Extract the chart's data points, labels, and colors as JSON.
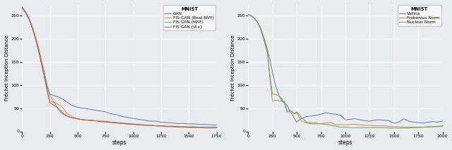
{
  "ylabel": "Fréchet Inception Distance",
  "xlabel": "steps",
  "bg_color": "#e8ecf0",
  "axes_bg": "#e8ecf0",
  "grid_color": "#ffffff",
  "plot1": {
    "legend_title": "MNIST",
    "legend": [
      "GAN",
      "FIS-GAN (Real-NVP)",
      "FIS GAN (MAF)",
      "FIS GAN (IA+)"
    ],
    "colors": [
      "#5a78b8",
      "#e0813a",
      "#5aaa5a",
      "#d44e4e"
    ],
    "xlim": [
      0,
      1750
    ],
    "ylim": [
      0,
      275
    ],
    "yticks": [
      0,
      50,
      100,
      150,
      200,
      250
    ],
    "xticks": [
      0,
      250,
      500,
      750,
      1000,
      1250,
      1500,
      1750
    ],
    "steps": [
      0,
      25,
      50,
      75,
      100,
      125,
      150,
      175,
      200,
      225,
      250,
      275,
      300,
      325,
      350,
      375,
      400,
      425,
      450,
      475,
      500,
      550,
      600,
      650,
      700,
      750,
      800,
      850,
      900,
      950,
      1000,
      1050,
      1100,
      1150,
      1200,
      1250,
      1300,
      1350,
      1400,
      1450,
      1500,
      1550,
      1600,
      1650,
      1700,
      1750
    ],
    "GAN": [
      265,
      258,
      248,
      235,
      218,
      200,
      178,
      152,
      128,
      100,
      80,
      78,
      76,
      74,
      72,
      68,
      64,
      60,
      56,
      54,
      52,
      50,
      48,
      46,
      44,
      42,
      38,
      36,
      32,
      30,
      28,
      26,
      24,
      22,
      22,
      20,
      19,
      18,
      17,
      17,
      16,
      16,
      15,
      15,
      14,
      14
    ],
    "RealNVP": [
      268,
      260,
      250,
      237,
      220,
      200,
      178,
      150,
      124,
      90,
      65,
      63,
      62,
      58,
      55,
      48,
      40,
      36,
      32,
      29,
      27,
      25,
      24,
      23,
      22,
      22,
      20,
      18,
      17,
      16,
      15,
      14,
      14,
      13,
      12,
      12,
      11,
      11,
      10,
      10,
      10,
      10,
      9,
      9,
      9,
      9
    ],
    "MAF": [
      266,
      258,
      248,
      234,
      216,
      196,
      172,
      145,
      118,
      96,
      78,
      68,
      58,
      48,
      40,
      36,
      33,
      31,
      29,
      28,
      27,
      25,
      24,
      23,
      22,
      21,
      20,
      19,
      18,
      17,
      16,
      15,
      14,
      13,
      12,
      11,
      10,
      10,
      9,
      9,
      8,
      8,
      8,
      7,
      7,
      7
    ],
    "IAplus": [
      268,
      260,
      250,
      236,
      218,
      196,
      172,
      145,
      118,
      86,
      62,
      58,
      54,
      50,
      44,
      38,
      34,
      31,
      29,
      28,
      27,
      25,
      24,
      23,
      21,
      20,
      19,
      18,
      17,
      16,
      15,
      14,
      13,
      13,
      12,
      12,
      11,
      11,
      10,
      10,
      9,
      9,
      9,
      9,
      9,
      9
    ]
  },
  "plot2": {
    "legend_title": "MNIST",
    "legend": [
      "Vallina",
      "Frobenius Norm",
      "Nuclear Norm"
    ],
    "colors": [
      "#5a78b8",
      "#e0813a",
      "#5aaa5a"
    ],
    "xlim": [
      0,
      2000
    ],
    "ylim": [
      0,
      275
    ],
    "yticks": [
      0,
      50,
      100,
      150,
      200,
      250
    ],
    "xticks": [
      0,
      250,
      500,
      750,
      1000,
      1250,
      1500,
      1750,
      2000
    ],
    "steps": [
      0,
      25,
      50,
      75,
      100,
      125,
      150,
      175,
      200,
      225,
      250,
      275,
      300,
      325,
      350,
      375,
      400,
      425,
      450,
      475,
      500,
      550,
      600,
      650,
      700,
      750,
      800,
      850,
      900,
      950,
      1000,
      1050,
      1100,
      1150,
      1200,
      1250,
      1300,
      1350,
      1400,
      1450,
      1500,
      1550,
      1600,
      1650,
      1700,
      1750,
      1800,
      1850,
      1900,
      1950,
      2000
    ],
    "Vallina": [
      253,
      250,
      247,
      242,
      235,
      225,
      210,
      195,
      175,
      155,
      128,
      105,
      88,
      74,
      65,
      60,
      57,
      45,
      38,
      28,
      20,
      28,
      32,
      33,
      35,
      37,
      40,
      38,
      37,
      35,
      25,
      26,
      27,
      25,
      23,
      22,
      24,
      25,
      24,
      23,
      17,
      20,
      27,
      22,
      20,
      19,
      18,
      20,
      21,
      20,
      22
    ],
    "Frobenius": [
      253,
      250,
      247,
      242,
      235,
      224,
      208,
      192,
      170,
      112,
      65,
      67,
      67,
      65,
      65,
      65,
      45,
      45,
      43,
      38,
      40,
      22,
      18,
      16,
      16,
      17,
      18,
      19,
      14,
      15,
      14,
      15,
      15,
      14,
      13,
      13,
      12,
      12,
      12,
      11,
      10,
      10,
      9,
      9,
      9,
      9,
      9,
      10,
      10,
      11,
      12
    ],
    "Nuclear": [
      253,
      250,
      247,
      241,
      234,
      222,
      206,
      188,
      166,
      120,
      80,
      80,
      78,
      75,
      70,
      60,
      42,
      42,
      42,
      38,
      42,
      30,
      20,
      18,
      18,
      16,
      15,
      13,
      11,
      9,
      9,
      8,
      8,
      8,
      8,
      8,
      8,
      8,
      8,
      7,
      7,
      7,
      7,
      7,
      8,
      8,
      9,
      9,
      10,
      10,
      11
    ]
  }
}
